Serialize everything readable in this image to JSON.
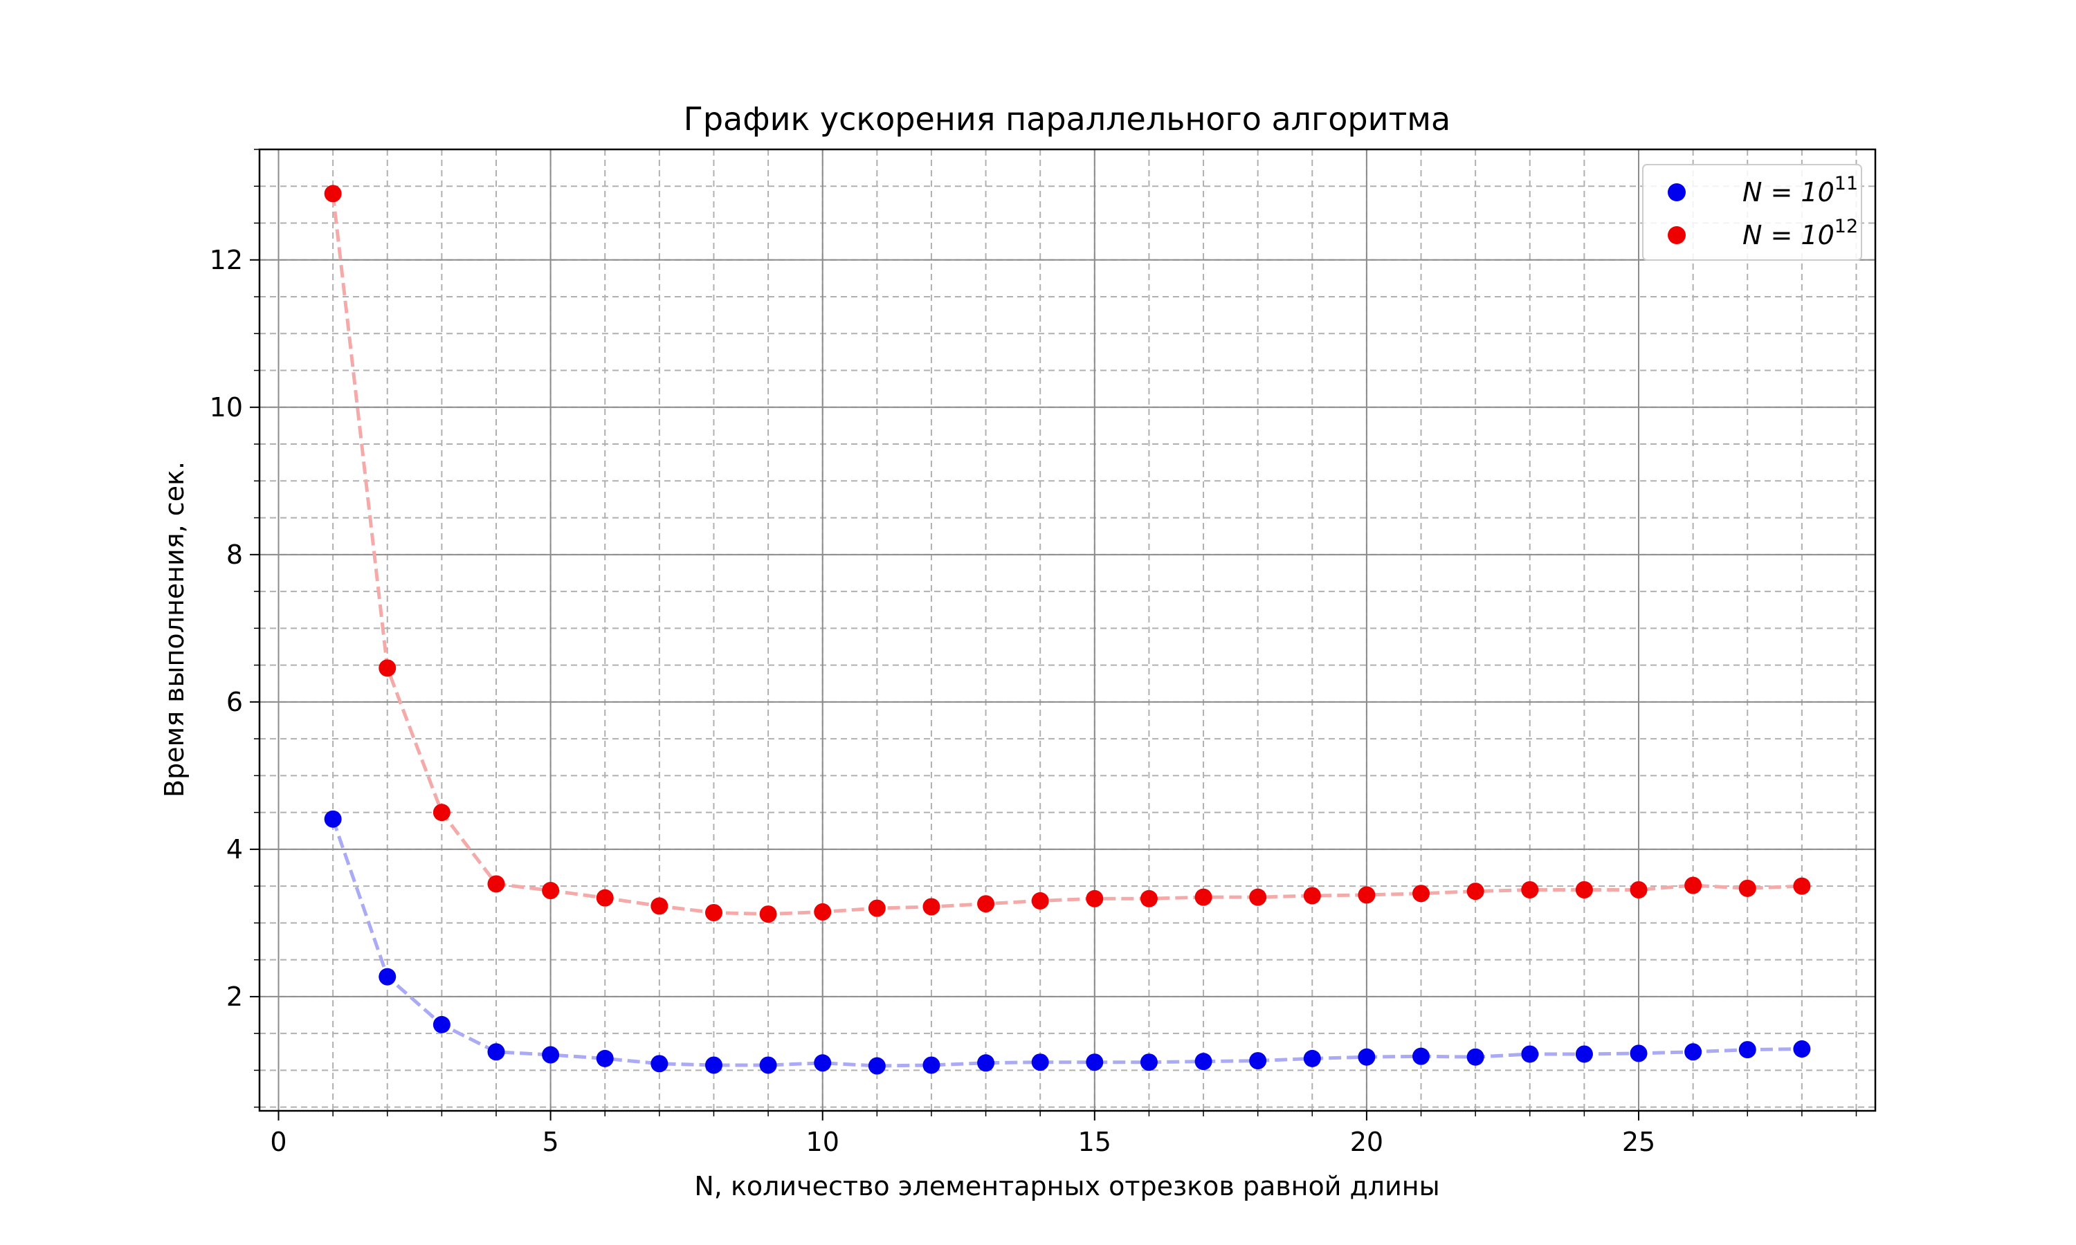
{
  "chart_data": {
    "type": "scatter",
    "title": "График ускорения параллельного алгоритма",
    "xlabel": "N, количество элементарных отрезков равной длины",
    "ylabel": "Время выполнения, сек.",
    "xlim": [
      -0.35,
      29.35
    ],
    "ylim": [
      0.45,
      13.5
    ],
    "xticks": [
      0,
      5,
      10,
      15,
      20,
      25
    ],
    "yticks": [
      2,
      4,
      6,
      8,
      10,
      12
    ],
    "grid": true,
    "legend_position": "top-right",
    "x": [
      1,
      2,
      3,
      4,
      5,
      6,
      7,
      8,
      9,
      10,
      11,
      12,
      13,
      14,
      15,
      16,
      17,
      18,
      19,
      20,
      21,
      22,
      23,
      24,
      25,
      26,
      27,
      28
    ],
    "series": [
      {
        "legend_base": "N = 10",
        "legend_exp": "11",
        "color": "#0000ee",
        "line_color": "#aaaaf5",
        "values": [
          4.41,
          2.27,
          1.62,
          1.25,
          1.21,
          1.16,
          1.09,
          1.07,
          1.07,
          1.1,
          1.06,
          1.07,
          1.1,
          1.11,
          1.11,
          1.11,
          1.12,
          1.13,
          1.16,
          1.18,
          1.19,
          1.18,
          1.22,
          1.22,
          1.23,
          1.25,
          1.28,
          1.29
        ]
      },
      {
        "legend_base": "N = 10",
        "legend_exp": "12",
        "color": "#ee0000",
        "line_color": "#f5aaaa",
        "values": [
          12.9,
          6.46,
          4.5,
          3.53,
          3.44,
          3.34,
          3.23,
          3.14,
          3.12,
          3.15,
          3.2,
          3.22,
          3.26,
          3.3,
          3.33,
          3.33,
          3.35,
          3.35,
          3.37,
          3.38,
          3.4,
          3.43,
          3.45,
          3.45,
          3.45,
          3.51,
          3.47,
          3.5
        ]
      }
    ]
  }
}
